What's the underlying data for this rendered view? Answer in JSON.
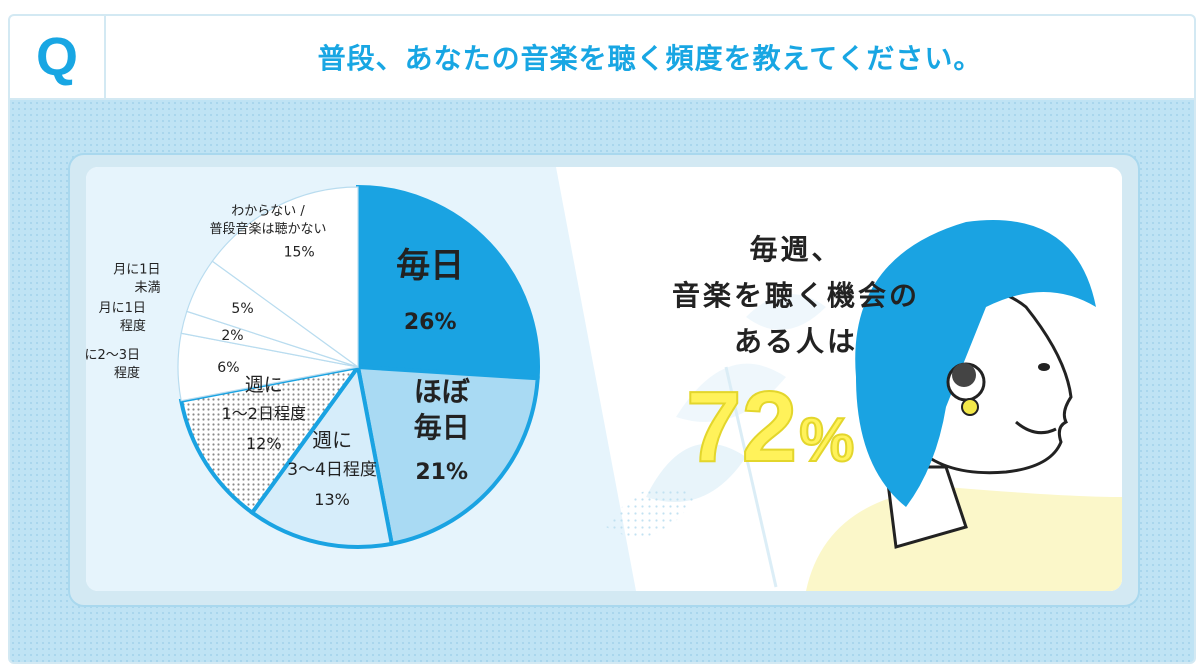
{
  "header": {
    "q_mark": "Q",
    "question": "普段、あなたの音楽を聴く頻度を教えてください。"
  },
  "chart_data": {
    "type": "pie",
    "unit": "%",
    "slices": [
      {
        "label": "毎日",
        "value": 26,
        "color": "#1aa3e2"
      },
      {
        "label": "ほぼ毎日",
        "value": 21,
        "color": "#a9daf3"
      },
      {
        "label": "週に3〜4日程度",
        "value": 13,
        "color": "#d6edfa"
      },
      {
        "label": "週に1〜2日程度",
        "value": 12,
        "color": "#d6d6d6"
      },
      {
        "label": "月に2〜3日程度",
        "value": 6,
        "color": "#ffffff"
      },
      {
        "label": "月に1日程度",
        "value": 2,
        "color": "#ffffff"
      },
      {
        "label": "月に1日未満",
        "value": 5,
        "color": "#ffffff"
      },
      {
        "label": "わからない / 普段音楽は聴かない",
        "value": 15,
        "color": "#ffffff"
      }
    ]
  },
  "callout": {
    "line1": "毎週、",
    "line2": "音楽を聴く機会の",
    "line3": "ある人は",
    "value": "72",
    "unit": "%"
  },
  "colors": {
    "accent": "#18a6e3",
    "highlight": "#fff25a",
    "hair": "#1aa3e2",
    "skin": "#ffffff",
    "shirt": "#fbf7c9"
  },
  "illustration": {
    "figure": "woman-listening-with-earbuds",
    "decor": "leaf-silhouettes"
  }
}
